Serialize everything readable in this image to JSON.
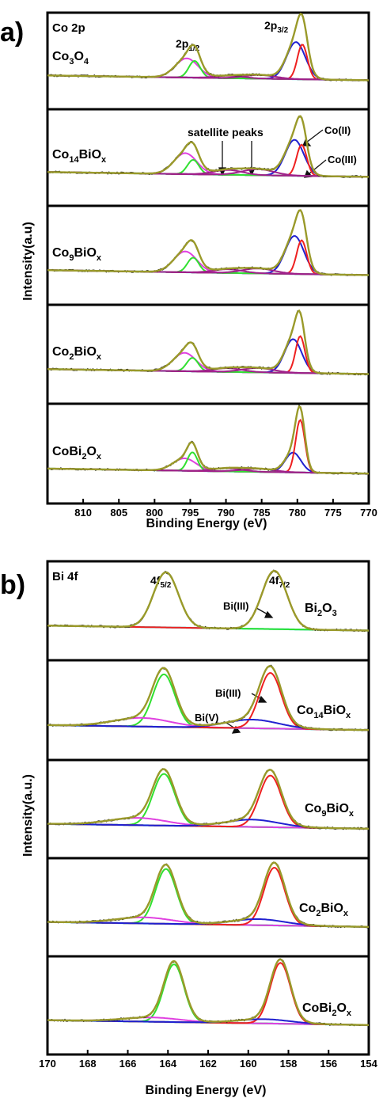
{
  "chart_data": [
    {
      "panel_label": "a)",
      "element_label": "Co 2p",
      "type": "line",
      "x_range": [
        770,
        815
      ],
      "x_reversed": true,
      "x_ticks": [
        810,
        805,
        800,
        795,
        790,
        785,
        780,
        775,
        770
      ],
      "xlabel": "Binding Energy (eV)",
      "ylabel": "Intensity(a.u)",
      "peak_labels": {
        "p12": "2p",
        "p12_sub": "1/2",
        "p32": "2p",
        "p32_sub": "3/2"
      },
      "annotations": {
        "satellite": "satellite peaks",
        "co2": "Co(II)",
        "co3": "Co(III)"
      },
      "colors": {
        "raw": "#1a1a1a",
        "fit": "#9a9a2a",
        "background": "#1ee0e0",
        "co2_main": "#2020d0",
        "co3_main": "#ee2020",
        "sat_main": "#a0208a",
        "co_p12_a": "#e040e0",
        "co_p12_b": "#30e030"
      },
      "stacks": [
        {
          "name": "Co",
          "sub1": "3",
          "mid": "O",
          "sub2": "4",
          "tail": "",
          "peaks": [
            {
              "c": 780.2,
              "h": 0.62,
              "w": 1.3,
              "color": "#2020d0"
            },
            {
              "c": 779.3,
              "h": 0.58,
              "w": 0.7,
              "color": "#ee2020"
            },
            {
              "c": 795.5,
              "h": 0.32,
              "w": 1.6,
              "color": "#e040e0"
            },
            {
              "c": 794.4,
              "h": 0.28,
              "w": 0.8,
              "color": "#30e030"
            },
            {
              "c": 785.3,
              "h": 0.06,
              "w": 2.2,
              "color": "#a0208a"
            },
            {
              "c": 789.5,
              "h": 0.04,
              "w": 2.0,
              "color": "#a0208a"
            }
          ]
        },
        {
          "name": "Co",
          "sub1": "14",
          "mid": "BiO",
          "sub2": "x",
          "tail": "",
          "peaks": [
            {
              "c": 780.4,
              "h": 0.6,
              "w": 1.3,
              "color": "#2020d0"
            },
            {
              "c": 779.4,
              "h": 0.52,
              "w": 0.7,
              "color": "#ee2020"
            },
            {
              "c": 795.7,
              "h": 0.35,
              "w": 1.6,
              "color": "#e040e0"
            },
            {
              "c": 794.6,
              "h": 0.24,
              "w": 0.8,
              "color": "#30e030"
            },
            {
              "c": 785.5,
              "h": 0.1,
              "w": 2.2,
              "color": "#a0208a"
            },
            {
              "c": 789.7,
              "h": 0.08,
              "w": 2.0,
              "color": "#a0208a"
            }
          ]
        },
        {
          "name": "Co",
          "sub1": "9",
          "mid": "BiO",
          "sub2": "x",
          "tail": "",
          "peaks": [
            {
              "c": 780.4,
              "h": 0.62,
              "w": 1.3,
              "color": "#2020d0"
            },
            {
              "c": 779.4,
              "h": 0.55,
              "w": 0.7,
              "color": "#ee2020"
            },
            {
              "c": 795.7,
              "h": 0.34,
              "w": 1.6,
              "color": "#e040e0"
            },
            {
              "c": 794.6,
              "h": 0.24,
              "w": 0.8,
              "color": "#30e030"
            },
            {
              "c": 785.5,
              "h": 0.08,
              "w": 2.2,
              "color": "#a0208a"
            },
            {
              "c": 789.7,
              "h": 0.06,
              "w": 2.0,
              "color": "#a0208a"
            }
          ]
        },
        {
          "name": "Co",
          "sub1": "2",
          "mid": "BiO",
          "sub2": "x",
          "tail": "",
          "peaks": [
            {
              "c": 780.6,
              "h": 0.55,
              "w": 1.2,
              "color": "#2020d0"
            },
            {
              "c": 779.6,
              "h": 0.6,
              "w": 0.65,
              "color": "#ee2020"
            },
            {
              "c": 795.8,
              "h": 0.3,
              "w": 1.6,
              "color": "#e040e0"
            },
            {
              "c": 794.7,
              "h": 0.22,
              "w": 0.8,
              "color": "#30e030"
            },
            {
              "c": 785.5,
              "h": 0.07,
              "w": 2.2,
              "color": "#a0208a"
            },
            {
              "c": 789.7,
              "h": 0.06,
              "w": 2.0,
              "color": "#a0208a"
            }
          ]
        },
        {
          "name": "CoBi",
          "sub1": "2",
          "mid": "O",
          "sub2": "x",
          "tail": "",
          "peaks": [
            {
              "c": 780.6,
              "h": 0.32,
              "w": 1.1,
              "color": "#2020d0"
            },
            {
              "c": 779.6,
              "h": 0.85,
              "w": 0.65,
              "color": "#ee2020"
            },
            {
              "c": 795.8,
              "h": 0.2,
              "w": 1.6,
              "color": "#e040e0"
            },
            {
              "c": 794.7,
              "h": 0.3,
              "w": 0.7,
              "color": "#30e030"
            },
            {
              "c": 785.5,
              "h": 0.05,
              "w": 2.2,
              "color": "#a0208a"
            },
            {
              "c": 789.7,
              "h": 0.05,
              "w": 2.0,
              "color": "#a0208a"
            }
          ]
        }
      ]
    },
    {
      "panel_label": "b)",
      "element_label": "Bi 4f",
      "type": "line",
      "x_range": [
        154,
        170
      ],
      "x_reversed": true,
      "x_ticks": [
        170,
        168,
        166,
        164,
        162,
        160,
        158,
        156,
        154
      ],
      "xlabel": "Binding Energy (eV)",
      "ylabel": "Intensity(a.u.)",
      "peak_labels": {
        "p52": "4f",
        "p52_sub": "5/2",
        "p72": "4f",
        "p72_sub": "7/2"
      },
      "annotations": {
        "bi3_top": "Bi(III)",
        "bi3": "Bi(III)",
        "bi5": "Bi(V)"
      },
      "colors": {
        "raw": "#1a1a1a",
        "fit": "#9a9a2a",
        "background": "#1ee0e0",
        "bi3_72": "#ee2020",
        "bi5_72": "#2020d0",
        "bi3_52": "#30e030",
        "bi5_52": "#e040e0"
      },
      "stacks": [
        {
          "name": "Bi",
          "sub1": "2",
          "mid": "O",
          "sub2": "3",
          "tail": "",
          "peaks": [
            {
              "c": 164.1,
              "h": 0.9,
              "w": 0.62,
              "color": "#30e030"
            },
            {
              "c": 158.7,
              "h": 0.95,
              "w": 0.62,
              "color": "#ee2020"
            }
          ]
        },
        {
          "name": "Co",
          "sub1": "14",
          "mid": "BiO",
          "sub2": "x",
          "tail": "",
          "peaks": [
            {
              "c": 164.2,
              "h": 0.85,
              "w": 0.55,
              "color": "#30e030"
            },
            {
              "c": 165.3,
              "h": 0.14,
              "w": 1.4,
              "color": "#e040e0"
            },
            {
              "c": 158.9,
              "h": 0.9,
              "w": 0.55,
              "color": "#ee2020"
            },
            {
              "c": 159.8,
              "h": 0.14,
              "w": 1.3,
              "color": "#2020d0"
            }
          ]
        },
        {
          "name": "Co",
          "sub1": "9",
          "mid": "BiO",
          "sub2": "x",
          "tail": "",
          "peaks": [
            {
              "c": 164.2,
              "h": 0.85,
              "w": 0.55,
              "color": "#30e030"
            },
            {
              "c": 165.5,
              "h": 0.12,
              "w": 1.4,
              "color": "#e040e0"
            },
            {
              "c": 158.9,
              "h": 0.85,
              "w": 0.55,
              "color": "#ee2020"
            },
            {
              "c": 159.8,
              "h": 0.12,
              "w": 1.3,
              "color": "#2020d0"
            }
          ]
        },
        {
          "name": "Co",
          "sub1": "2",
          "mid": "BiO",
          "sub2": "x",
          "tail": "",
          "peaks": [
            {
              "c": 164.1,
              "h": 0.9,
              "w": 0.52,
              "color": "#30e030"
            },
            {
              "c": 165.2,
              "h": 0.1,
              "w": 1.4,
              "color": "#e040e0"
            },
            {
              "c": 158.7,
              "h": 0.95,
              "w": 0.52,
              "color": "#ee2020"
            },
            {
              "c": 159.5,
              "h": 0.1,
              "w": 1.3,
              "color": "#2020d0"
            }
          ]
        },
        {
          "name": "CoBi",
          "sub1": "2",
          "mid": "O",
          "sub2": "x",
          "tail": "",
          "peaks": [
            {
              "c": 163.7,
              "h": 0.95,
              "w": 0.5,
              "color": "#30e030"
            },
            {
              "c": 164.8,
              "h": 0.07,
              "w": 1.4,
              "color": "#e040e0"
            },
            {
              "c": 158.4,
              "h": 1.0,
              "w": 0.5,
              "color": "#ee2020"
            },
            {
              "c": 159.2,
              "h": 0.07,
              "w": 1.3,
              "color": "#2020d0"
            }
          ]
        }
      ]
    }
  ]
}
